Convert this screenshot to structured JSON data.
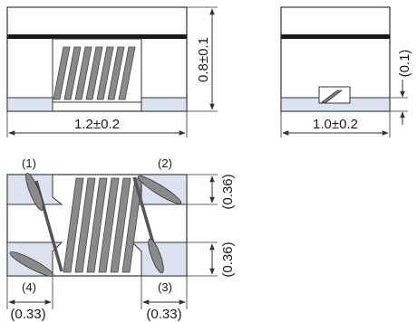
{
  "front_view": {
    "length_dim": "1.2±0.2",
    "height_dim": "0.8±0.1"
  },
  "side_view": {
    "width_dim": "1.0±0.2",
    "terminal_dim": "(0.1)"
  },
  "bottom_view": {
    "pad_labels": [
      "(1)",
      "(2)",
      "(3)",
      "(4)"
    ],
    "pad_height_top": "(0.36)",
    "pad_height_bottom": "(0.36)",
    "pad_width_left": "(0.33)",
    "pad_width_right": "(0.33)"
  },
  "colors": {
    "outline": "#333333",
    "electrode": "#dde2f0",
    "coil": "#7c7c7c",
    "top_band": "#1a1a1a"
  }
}
